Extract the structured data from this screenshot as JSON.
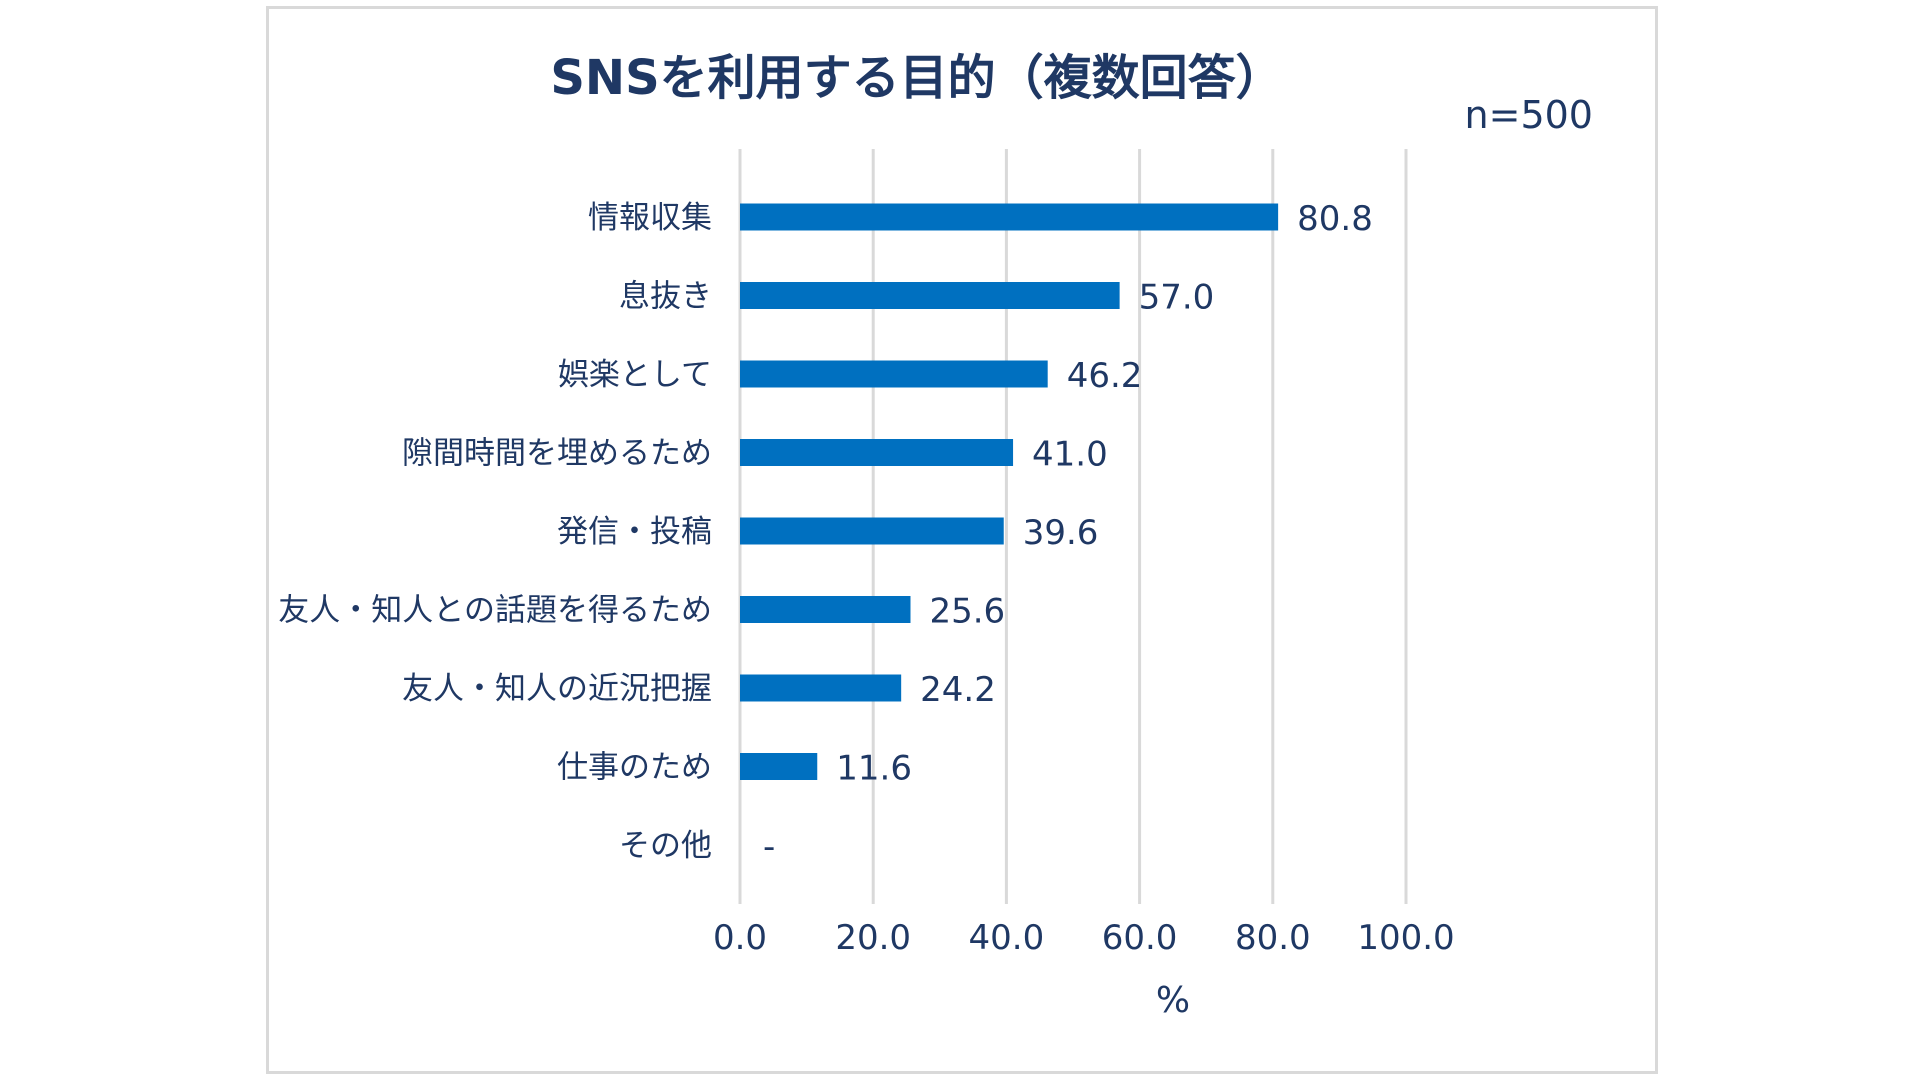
{
  "chart_data": {
    "type": "bar",
    "orientation": "horizontal",
    "title": "SNSを利用する目的（複数回答）",
    "sample_size_label": "n=500",
    "categories": [
      "情報収集",
      "息抜き",
      "娯楽として",
      "隙間時間を埋めるため",
      "発信・投稿",
      "友人・知人との話題を得るため",
      "友人・知人の近況把握",
      "仕事のため",
      "その他"
    ],
    "values": [
      80.8,
      57.0,
      46.2,
      41.0,
      39.6,
      25.6,
      24.2,
      11.6,
      null
    ],
    "value_labels": [
      "80.8",
      "57.0",
      "46.2",
      "41.0",
      "39.6",
      "25.6",
      "24.2",
      "11.6",
      "-"
    ],
    "xlim": [
      0,
      100
    ],
    "x_ticks": [
      0,
      20,
      40,
      60,
      80,
      100
    ],
    "x_tick_labels": [
      "0.0",
      "20.0",
      "40.0",
      "60.0",
      "80.0",
      "100.0"
    ],
    "xlabel": "%",
    "ylabel": "",
    "grid": true,
    "bar_color": "#0070c0",
    "text_color": "#1f3864",
    "grid_color": "#d9d9d9"
  }
}
